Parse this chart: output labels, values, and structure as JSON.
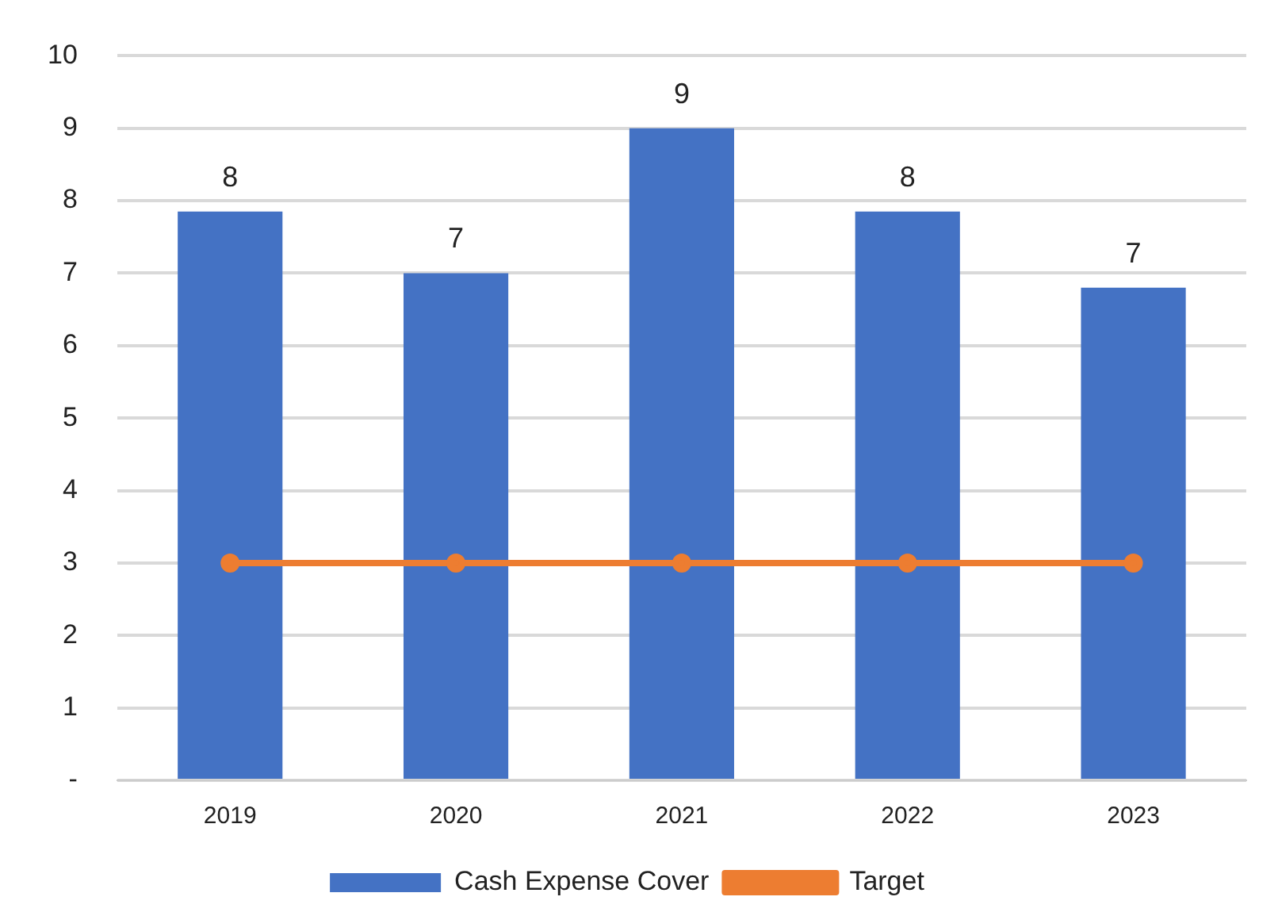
{
  "chart_data": {
    "type": "bar",
    "categories": [
      "2019",
      "2020",
      "2021",
      "2022",
      "2023"
    ],
    "series": [
      {
        "name": "Cash Expense Cover",
        "color": "#4472c4",
        "values": [
          7.85,
          7.0,
          9.0,
          7.85,
          6.8
        ],
        "value_labels": [
          "8",
          "7",
          "9",
          "8",
          "7"
        ]
      },
      {
        "name": "Target",
        "type": "line",
        "color": "#ed7d31",
        "values": [
          3,
          3,
          3,
          3,
          3
        ],
        "marker": "circle"
      }
    ],
    "ylim": [
      0,
      10
    ],
    "yticks": [
      {
        "value": 0,
        "label": "-"
      },
      1,
      2,
      3,
      4,
      5,
      6,
      7,
      8,
      9,
      10
    ],
    "grid": "y",
    "legend": "bottom"
  }
}
